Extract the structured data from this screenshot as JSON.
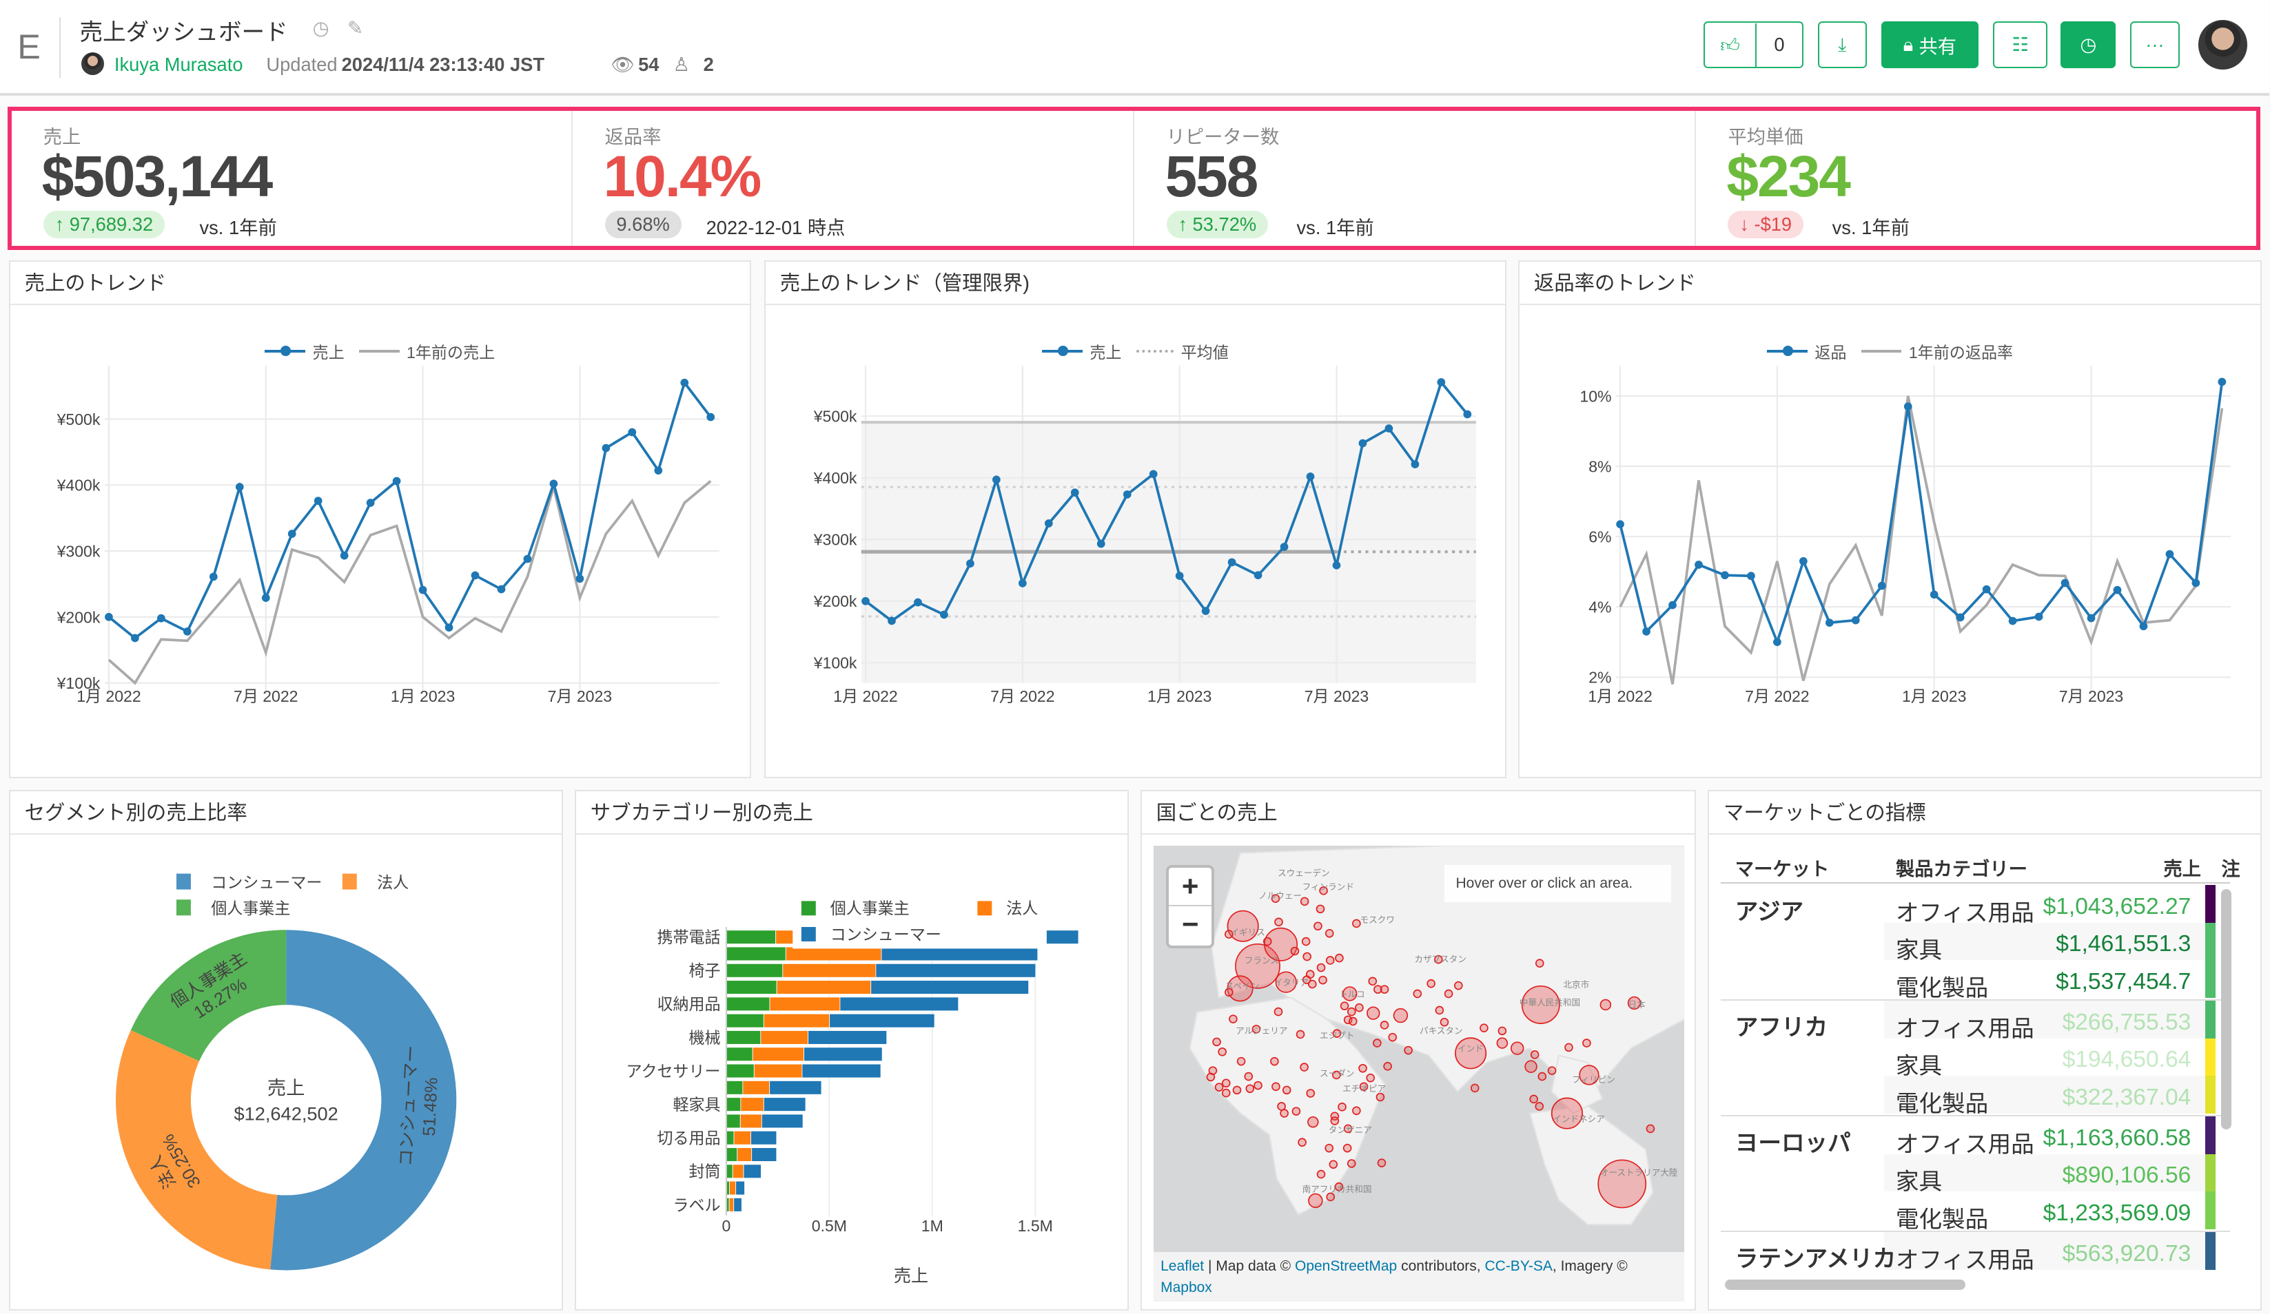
{
  "header": {
    "logo": "E",
    "title": "売上ダッシュボード",
    "author": "Ikuya Murasato",
    "updated_label": "Updated",
    "updated_at": "2024/11/4 23:13:40 JST",
    "views": "54",
    "users": "2",
    "like_count": "0",
    "share_label": "共有"
  },
  "kpis": [
    {
      "label": "売上",
      "value": "$503,144",
      "value_color": "#444444",
      "delta": "↑ 97,689.32",
      "delta_kind": "up",
      "suffix": "vs. 1年前"
    },
    {
      "label": "返品率",
      "value": "10.4%",
      "value_color": "#e8504c",
      "delta": "9.68%",
      "delta_kind": "neutral",
      "suffix": "2022-12-01 時点"
    },
    {
      "label": "リピーター数",
      "value": "558",
      "value_color": "#444444",
      "delta": "↑ 53.72%",
      "delta_kind": "up",
      "suffix": "vs. 1年前"
    },
    {
      "label": "平均単価",
      "value": "$234",
      "value_color": "#6cbb3c",
      "delta": "↓ -$19",
      "delta_kind": "down",
      "suffix": "vs. 1年前"
    }
  ],
  "cards": {
    "trend": "売上のトレンド",
    "control": "売上のトレンド（管理限界)",
    "returns": "返品率のトレンド",
    "segment": "セグメント別の売上比率",
    "subcat": "サブカテゴリー別の売上",
    "country": "国ごとの売上",
    "market": "マーケットごとの指標"
  },
  "chart_data": [
    {
      "id": "trend",
      "type": "line",
      "x": [
        "2022-01",
        "2022-02",
        "2022-03",
        "2022-04",
        "2022-05",
        "2022-06",
        "2022-07",
        "2022-08",
        "2022-09",
        "2022-10",
        "2022-11",
        "2022-12",
        "2023-01",
        "2023-02",
        "2023-03",
        "2023-04",
        "2023-05",
        "2023-06",
        "2023-07",
        "2023-08",
        "2023-09",
        "2023-10",
        "2023-11",
        "2023-12"
      ],
      "xtick_index": [
        0,
        6,
        12,
        18
      ],
      "xtick_labels": [
        "1月 2022",
        "7月 2022",
        "1月 2023",
        "7月 2023"
      ],
      "yticks": [
        100000,
        200000,
        300000,
        400000,
        500000
      ],
      "ytick_labels": [
        "¥100k",
        "¥200k",
        "¥300k",
        "¥400k",
        "¥500k"
      ],
      "series": [
        {
          "name": "売上",
          "color": "#1f77b4",
          "markers": true,
          "values": [
            200000,
            168000,
            198000,
            178000,
            261000,
            397000,
            229000,
            326000,
            376000,
            293000,
            373000,
            406000,
            241000,
            184000,
            263000,
            242000,
            288000,
            402000,
            258000,
            456000,
            480000,
            422000,
            555000,
            503000
          ]
        },
        {
          "name": "1年前の売上",
          "color": "#aaaaaa",
          "markers": false,
          "values": [
            135000,
            100000,
            166000,
            164000,
            210000,
            256000,
            146000,
            302000,
            290000,
            253000,
            324000,
            338000,
            200000,
            168000,
            198000,
            178000,
            261000,
            397000,
            229000,
            326000,
            376000,
            293000,
            373000,
            406000
          ]
        }
      ]
    },
    {
      "id": "control",
      "type": "line",
      "x": [
        "2022-01",
        "2022-02",
        "2022-03",
        "2022-04",
        "2022-05",
        "2022-06",
        "2022-07",
        "2022-08",
        "2022-09",
        "2022-10",
        "2022-11",
        "2022-12",
        "2023-01",
        "2023-02",
        "2023-03",
        "2023-04",
        "2023-05",
        "2023-06",
        "2023-07",
        "2023-08",
        "2023-09",
        "2023-10",
        "2023-11",
        "2023-12"
      ],
      "xtick_index": [
        0,
        6,
        12,
        18
      ],
      "xtick_labels": [
        "1月 2022",
        "7月 2022",
        "1月 2023",
        "7月 2023"
      ],
      "yticks": [
        100000,
        200000,
        300000,
        400000,
        500000
      ],
      "ytick_labels": [
        "¥100k",
        "¥200k",
        "¥300k",
        "¥400k",
        "¥500k"
      ],
      "series": [
        {
          "name": "売上",
          "color": "#1f77b4",
          "markers": true,
          "values": [
            200000,
            168000,
            198000,
            178000,
            261000,
            397000,
            229000,
            326000,
            376000,
            293000,
            373000,
            406000,
            241000,
            184000,
            263000,
            242000,
            288000,
            402000,
            258000,
            456000,
            480000,
            422000,
            555000,
            503000
          ]
        }
      ],
      "reference_legend": "平均値",
      "reference_lines": {
        "mean": 280000,
        "upper_1sigma": 385000,
        "lower_1sigma": 175000,
        "upper_limit": 490000
      }
    },
    {
      "id": "returns",
      "type": "line",
      "x": [
        "2022-01",
        "2022-02",
        "2022-03",
        "2022-04",
        "2022-05",
        "2022-06",
        "2022-07",
        "2022-08",
        "2022-09",
        "2022-10",
        "2022-11",
        "2022-12",
        "2023-01",
        "2023-02",
        "2023-03",
        "2023-04",
        "2023-05",
        "2023-06",
        "2023-07",
        "2023-08",
        "2023-09",
        "2023-10",
        "2023-11",
        "2023-12"
      ],
      "xtick_index": [
        0,
        6,
        12,
        18
      ],
      "xtick_labels": [
        "1月 2022",
        "7月 2022",
        "1月 2023",
        "7月 2023"
      ],
      "yticks": [
        2,
        4,
        6,
        8,
        10
      ],
      "ytick_labels": [
        "2%",
        "4%",
        "6%",
        "8%",
        "10%"
      ],
      "series": [
        {
          "name": "返品",
          "color": "#1f77b4",
          "markers": true,
          "values": [
            6.35,
            3.3,
            4.05,
            5.2,
            4.9,
            4.88,
            3.0,
            5.3,
            3.55,
            3.62,
            4.6,
            9.7,
            4.35,
            3.7,
            4.5,
            3.6,
            3.72,
            4.68,
            3.68,
            4.48,
            3.45,
            5.5,
            4.68,
            10.4
          ]
        },
        {
          "name": "1年前の返品率",
          "color": "#aaaaaa",
          "markers": false,
          "values": [
            4.0,
            5.5,
            1.8,
            7.6,
            3.45,
            2.7,
            5.3,
            1.9,
            4.65,
            5.75,
            3.75,
            10.0,
            6.4,
            3.3,
            4.05,
            5.2,
            4.9,
            4.88,
            3.0,
            5.3,
            3.55,
            3.62,
            4.6,
            9.65
          ]
        }
      ]
    },
    {
      "id": "segment",
      "type": "pie",
      "labels": [
        "コンシューマー",
        "法人",
        "個人事業主"
      ],
      "values": [
        51.48,
        30.25,
        18.27
      ],
      "value_labels": [
        "51.48%",
        "30.25%",
        "18.27%"
      ],
      "colors": [
        "#4c92c3",
        "#ff993e",
        "#56b356"
      ],
      "center_title": "売上",
      "center_value": "$12,642,502"
    },
    {
      "id": "subcat",
      "type": "bar",
      "orientation": "horizontal",
      "stacked": true,
      "categories": [
        "携帯電話",
        "",
        "椅子",
        "",
        "収納用品",
        "",
        "機械",
        "",
        "アクセサリー",
        "",
        "軽家具",
        "",
        "切る用品",
        "",
        "封筒",
        "",
        "ラベル"
      ],
      "series": [
        {
          "name": "個人事業主",
          "color": "#2ca02c",
          "values": [
            0.24,
            0.289,
            0.274,
            0.245,
            0.211,
            0.182,
            0.167,
            0.128,
            0.135,
            0.08,
            0.07,
            0.068,
            0.037,
            0.053,
            0.031,
            0.015,
            0.014
          ]
        },
        {
          "name": "法人",
          "color": "#ff7f0e",
          "values": [
            0.55,
            0.464,
            0.452,
            0.457,
            0.341,
            0.319,
            0.23,
            0.249,
            0.233,
            0.13,
            0.112,
            0.104,
            0.082,
            0.07,
            0.053,
            0.031,
            0.022
          ]
        },
        {
          "name": "コンシューマー",
          "color": "#1f77b4",
          "values": [
            0.92,
            0.759,
            0.776,
            0.766,
            0.575,
            0.51,
            0.382,
            0.38,
            0.382,
            0.252,
            0.203,
            0.2,
            0.125,
            0.121,
            0.085,
            0.043,
            0.039
          ]
        }
      ],
      "value_unit": "M",
      "xticks": [
        0,
        0.5,
        1,
        1.5
      ],
      "xtick_labels": [
        "0",
        "0.5M",
        "1M",
        "1.5M"
      ],
      "xlabel": "売上"
    }
  ],
  "map": {
    "zoom_in": "+",
    "zoom_out": "−",
    "info": "Hover over or click an area.",
    "attribution": {
      "leaflet": "Leaflet",
      "sep": " | Map data © ",
      "osm": "OpenStreetMap",
      "contrib": " contributors, ",
      "license": "CC-BY-SA",
      "imagery": ", Imagery © ",
      "mapbox": "Mapbox"
    },
    "labels": [
      "スウェーデン",
      "フィンランド",
      "ノルウェー",
      "イギリス",
      "フランス",
      "スペイン",
      "イタリア",
      "モスクワ",
      "カザフスタン",
      "トルコ",
      "エジプト",
      "アルジェリア",
      "スーダン",
      "エチオピア",
      "インド",
      "中華人民共和国",
      "北京市",
      "日本",
      "フィリピン",
      "インドネシア",
      "オーストラリア大陸",
      "南アフリカ共和国",
      "パキスタン",
      "タンザニア"
    ]
  },
  "table": {
    "headers": [
      "マーケット",
      "製品カテゴリー",
      "売上",
      "注"
    ],
    "rows": [
      {
        "market": "アジア",
        "category": "オフィス用品",
        "value": "$1,043,652.27",
        "value_color": "#3fae55",
        "stripe": "#440154"
      },
      {
        "market": "",
        "category": "家具",
        "value": "$1,461,551.3",
        "value_color": "#15803a",
        "stripe": "#4fbd6a"
      },
      {
        "market": "",
        "category": "電化製品",
        "value": "$1,537,454.7",
        "value_color": "#15803a",
        "stripe": "#4fbd6a"
      },
      {
        "market": "アフリカ",
        "category": "オフィス用品",
        "value": "$266,755.53",
        "value_color": "#b3e2b3",
        "stripe": "#4ab86b"
      },
      {
        "market": "",
        "category": "家具",
        "value": "$194,650.64",
        "value_color": "#c6eac6",
        "stripe": "#fde725"
      },
      {
        "market": "",
        "category": "電化製品",
        "value": "$322,367.04",
        "value_color": "#b3e2b3",
        "stripe": "#e3e12a"
      },
      {
        "market": "ヨーロッパ",
        "category": "オフィス用品",
        "value": "$1,163,660.58",
        "value_color": "#34a650",
        "stripe": "#45206c"
      },
      {
        "market": "",
        "category": "家具",
        "value": "$890,106.56",
        "value_color": "#5cbf5c",
        "stripe": "#9fd43d"
      },
      {
        "market": "",
        "category": "電化製品",
        "value": "$1,233,569.09",
        "value_color": "#27a045",
        "stripe": "#7bd050"
      },
      {
        "market": "ラテンアメリカ",
        "category": "オフィス用品",
        "value": "$563,920.73",
        "value_color": "#92d492",
        "stripe": "#30628c"
      }
    ]
  }
}
